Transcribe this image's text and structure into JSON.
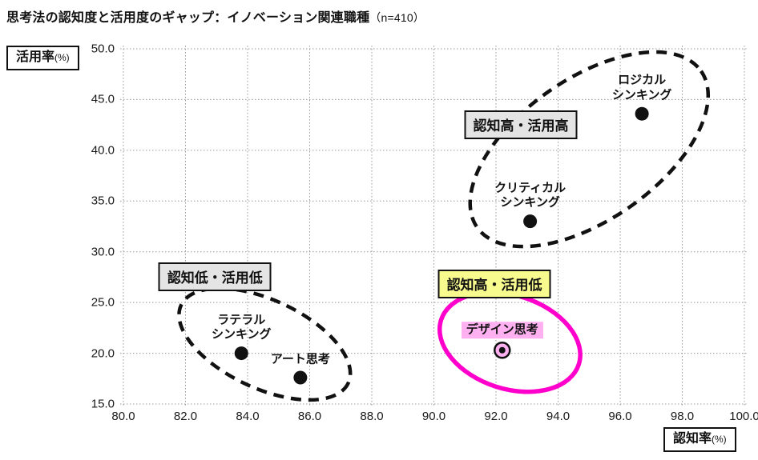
{
  "title": {
    "main": "思考法の認知度と活用度のギャップ：イノベーション関連職種",
    "sample": "（n=410）"
  },
  "axes": {
    "y_box": {
      "label": "活用率",
      "unit": "(%)"
    },
    "x_box": {
      "label": "認知率",
      "unit": "(%)"
    },
    "x_ticks": [
      80,
      82,
      84,
      86,
      88,
      90,
      92,
      94,
      96,
      98,
      100
    ],
    "y_ticks": [
      15,
      20,
      25,
      30,
      35,
      40,
      45,
      50
    ]
  },
  "chart_data": {
    "type": "scatter",
    "title": "思考法の認知度と活用度のギャップ：イノベーション関連職種（n=410）",
    "xlabel": "認知率(%)",
    "ylabel": "活用率(%)",
    "xlim": [
      80,
      100
    ],
    "ylim": [
      15,
      50
    ],
    "grid": true,
    "points": [
      {
        "name": "logical-thinking",
        "label_lines": [
          "ロジカル",
          "シンキング"
        ],
        "x": 96.7,
        "y": 43.6,
        "style": "dot"
      },
      {
        "name": "critical-thinking",
        "label_lines": [
          "クリティカル",
          "シンキング"
        ],
        "x": 93.1,
        "y": 33.0,
        "style": "dot"
      },
      {
        "name": "lateral-thinking",
        "label_lines": [
          "ラテラル",
          "シンキング"
        ],
        "x": 83.8,
        "y": 20.0,
        "style": "dot"
      },
      {
        "name": "art-thinking",
        "label_lines": [
          "アート思考"
        ],
        "x": 85.7,
        "y": 17.6,
        "style": "dot"
      },
      {
        "name": "design-thinking",
        "label_lines": [
          "デザイン思考"
        ],
        "x": 92.2,
        "y": 20.3,
        "style": "target",
        "label_bg": "#ffb0f0"
      }
    ],
    "clusters": [
      {
        "label": "認知高・活用高",
        "label_bg": "#e4e4e4",
        "label_x": 92.8,
        "label_y": 42.5,
        "ellipse": {
          "cx": 95.0,
          "cy": 40.1,
          "rx": 4.4,
          "ry": 6.95,
          "rot": -35,
          "stroke_style": "dashed",
          "color": "#111111"
        }
      },
      {
        "label": "認知低・活用低",
        "label_bg": "#e4e4e4",
        "label_x": 82.95,
        "label_y": 27.5,
        "ellipse": {
          "cx": 84.55,
          "cy": 20.9,
          "rx": 2.97,
          "ry": 4.35,
          "rot": 25,
          "stroke_style": "dashed",
          "color": "#111111"
        }
      },
      {
        "label": "認知高・活用低",
        "label_bg": "#f7fa8c",
        "label_x": 91.95,
        "label_y": 26.8,
        "ellipse": {
          "cx": 92.45,
          "cy": 21.1,
          "rx": 2.33,
          "ry": 4.6,
          "rot": 18,
          "stroke_style": "solid",
          "color": "#ff00cc"
        }
      }
    ],
    "colors": {
      "point": "#111111",
      "grid": "#999999",
      "highlight": "#ff00cc",
      "target_fill": "#ffb0f0",
      "box_gray": "#e4e4e4",
      "box_yellow": "#f7fa8c",
      "label_pink": "#ffb0f0"
    }
  }
}
